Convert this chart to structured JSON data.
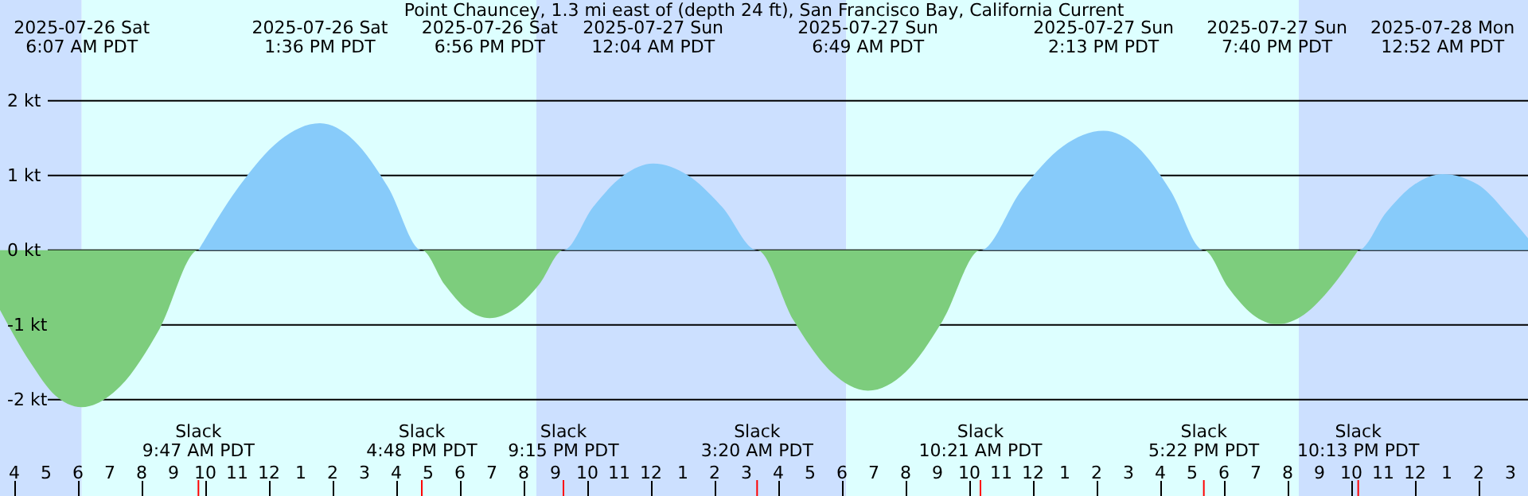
{
  "chart_data": {
    "type": "area",
    "title": "Point Chauncey, 1.3 mi east of (depth 24 ft), San Francisco Bay, California Current",
    "series": [
      {
        "color": "#7dcd7d",
        "x": [
          "2025-07-26T03:33",
          "2025-07-26T04:30",
          "2025-07-26T05:18",
          "2025-07-26T06:07",
          "2025-07-26T07:20",
          "2025-07-26T08:34",
          "2025-07-26T09:47",
          "2025-07-26T16:48",
          "2025-07-26T17:31",
          "2025-07-26T18:13",
          "2025-07-26T18:56",
          "2025-07-26T19:42",
          "2025-07-26T20:29",
          "2025-07-26T21:15",
          "2025-07-27T03:20",
          "2025-07-27T04:29",
          "2025-07-27T05:40",
          "2025-07-27T06:49",
          "2025-07-27T08:00",
          "2025-07-27T09:10",
          "2025-07-27T10:21",
          "2025-07-27T17:22",
          "2025-07-27T18:08",
          "2025-07-27T18:54",
          "2025-07-27T19:40",
          "2025-07-27T20:31",
          "2025-07-27T21:22",
          "2025-07-27T22:13"
        ],
        "values": [
          -0.8,
          -1.5,
          -1.95,
          -2.1,
          -1.82,
          -1.05,
          0,
          0,
          -0.46,
          -0.79,
          -0.91,
          -0.79,
          -0.46,
          0,
          0,
          -0.94,
          -1.63,
          -1.88,
          -1.63,
          -0.94,
          0,
          0,
          -0.5,
          -0.86,
          -0.99,
          -0.86,
          -0.5,
          0
        ]
      },
      {
        "color": "#87cbfa",
        "x": [
          "2025-07-26T09:47",
          "2025-07-26T11:03",
          "2025-07-26T12:20",
          "2025-07-26T13:36",
          "2025-07-26T14:40",
          "2025-07-26T15:44",
          "2025-07-26T16:48",
          "2025-07-26T21:15",
          "2025-07-26T22:11",
          "2025-07-26T23:08",
          "2025-07-27T00:04",
          "2025-07-27T01:10",
          "2025-07-27T02:14",
          "2025-07-27T03:20",
          "2025-07-27T10:21",
          "2025-07-27T11:38",
          "2025-07-27T12:56",
          "2025-07-27T14:13",
          "2025-07-27T15:16",
          "2025-07-27T16:19",
          "2025-07-27T17:22",
          "2025-07-27T22:13",
          "2025-07-27T23:06",
          "2025-07-27T23:59",
          "2025-07-28T00:52",
          "2025-07-28T01:58",
          "2025-07-28T03:02",
          "2025-07-28T03:33"
        ],
        "values": [
          0,
          0.85,
          1.47,
          1.7,
          1.47,
          0.85,
          0,
          0,
          0.58,
          1.0,
          1.16,
          1.0,
          0.58,
          0,
          0,
          0.8,
          1.39,
          1.6,
          1.39,
          0.8,
          0,
          0,
          0.51,
          0.88,
          1.02,
          0.88,
          0.42,
          0.16
        ]
      }
    ],
    "xlim": [
      "2025-07-26T03:33",
      "2025-07-28T03:33"
    ],
    "xticks": [
      {
        "value": "2025-07-26T04:00",
        "label": "4"
      },
      {
        "value": "2025-07-26T05:00",
        "label": "5"
      },
      {
        "value": "2025-07-26T06:00",
        "label": "6"
      },
      {
        "value": "2025-07-26T07:00",
        "label": "7"
      },
      {
        "value": "2025-07-26T08:00",
        "label": "8"
      },
      {
        "value": "2025-07-26T09:00",
        "label": "9"
      },
      {
        "value": "2025-07-26T10:00",
        "label": "10"
      },
      {
        "value": "2025-07-26T11:00",
        "label": "11"
      },
      {
        "value": "2025-07-26T12:00",
        "label": "12"
      },
      {
        "value": "2025-07-26T13:00",
        "label": "1"
      },
      {
        "value": "2025-07-26T14:00",
        "label": "2"
      },
      {
        "value": "2025-07-26T15:00",
        "label": "3"
      },
      {
        "value": "2025-07-26T16:00",
        "label": "4"
      },
      {
        "value": "2025-07-26T17:00",
        "label": "5"
      },
      {
        "value": "2025-07-26T18:00",
        "label": "6"
      },
      {
        "value": "2025-07-26T19:00",
        "label": "7"
      },
      {
        "value": "2025-07-26T20:00",
        "label": "8"
      },
      {
        "value": "2025-07-26T21:00",
        "label": "9"
      },
      {
        "value": "2025-07-26T22:00",
        "label": "10"
      },
      {
        "value": "2025-07-26T23:00",
        "label": "11"
      },
      {
        "value": "2025-07-27T00:00",
        "label": "12"
      },
      {
        "value": "2025-07-27T01:00",
        "label": "1"
      },
      {
        "value": "2025-07-27T02:00",
        "label": "2"
      },
      {
        "value": "2025-07-27T03:00",
        "label": "3"
      },
      {
        "value": "2025-07-27T04:00",
        "label": "4"
      },
      {
        "value": "2025-07-27T05:00",
        "label": "5"
      },
      {
        "value": "2025-07-27T06:00",
        "label": "6"
      },
      {
        "value": "2025-07-27T07:00",
        "label": "7"
      },
      {
        "value": "2025-07-27T08:00",
        "label": "8"
      },
      {
        "value": "2025-07-27T09:00",
        "label": "9"
      },
      {
        "value": "2025-07-27T10:00",
        "label": "10"
      },
      {
        "value": "2025-07-27T11:00",
        "label": "11"
      },
      {
        "value": "2025-07-27T12:00",
        "label": "12"
      },
      {
        "value": "2025-07-27T13:00",
        "label": "1"
      },
      {
        "value": "2025-07-27T14:00",
        "label": "2"
      },
      {
        "value": "2025-07-27T15:00",
        "label": "3"
      },
      {
        "value": "2025-07-27T16:00",
        "label": "4"
      },
      {
        "value": "2025-07-27T17:00",
        "label": "5"
      },
      {
        "value": "2025-07-27T18:00",
        "label": "6"
      },
      {
        "value": "2025-07-27T19:00",
        "label": "7"
      },
      {
        "value": "2025-07-27T20:00",
        "label": "8"
      },
      {
        "value": "2025-07-27T21:00",
        "label": "9"
      },
      {
        "value": "2025-07-27T22:00",
        "label": "10"
      },
      {
        "value": "2025-07-27T23:00",
        "label": "11"
      },
      {
        "value": "2025-07-28T00:00",
        "label": "12"
      },
      {
        "value": "2025-07-28T01:00",
        "label": "1"
      },
      {
        "value": "2025-07-28T02:00",
        "label": "2"
      },
      {
        "value": "2025-07-28T03:00",
        "label": "3"
      }
    ],
    "ylim": [
      -3.29,
      3.35
    ],
    "yticks": [
      {
        "value": -2,
        "label": "-2 kt"
      },
      {
        "value": -1,
        "label": "-1 kt"
      },
      {
        "value": 0,
        "label": "0 kt"
      },
      {
        "value": 1,
        "label": "1 kt"
      },
      {
        "value": 2,
        "label": "2 kt"
      }
    ],
    "grid": "y",
    "bands": [
      {
        "axis": "x",
        "from": "2025-07-26T03:33",
        "to": "2025-07-26T06:07",
        "color": "#cce0ff"
      },
      {
        "axis": "x",
        "from": "2025-07-26T06:07",
        "to": "2025-07-26T20:24",
        "color": "#ddffff"
      },
      {
        "axis": "x",
        "from": "2025-07-26T20:24",
        "to": "2025-07-27T06:08",
        "color": "#cce0ff"
      },
      {
        "axis": "x",
        "from": "2025-07-27T06:08",
        "to": "2025-07-27T20:21",
        "color": "#ddffff"
      },
      {
        "axis": "x",
        "from": "2025-07-27T20:21",
        "to": "2025-07-28T03:33",
        "color": "#cce0ff"
      }
    ],
    "annotations": [
      "2025-07-26 Sat\n6:07 AM PDT",
      "2025-07-26 Sat\n1:36 PM PDT",
      "2025-07-26 Sat\n6:56 PM PDT",
      "2025-07-27 Sun\n12:04 AM PDT",
      "2025-07-27 Sun\n6:49 AM PDT",
      "2025-07-27 Sun\n2:13 PM PDT",
      "2025-07-27 Sun\n7:40 PM PDT",
      "2025-07-28 Mon\n12:52 AM PDT",
      "Slack\n9:47 AM PDT",
      "Slack\n4:48 PM PDT",
      "Slack\n9:15 PM PDT",
      "Slack\n3:20 AM PDT",
      "Slack\n10:21 AM PDT",
      "Slack\n5:22 PM PDT",
      "Slack\n10:13 PM PDT"
    ]
  }
}
